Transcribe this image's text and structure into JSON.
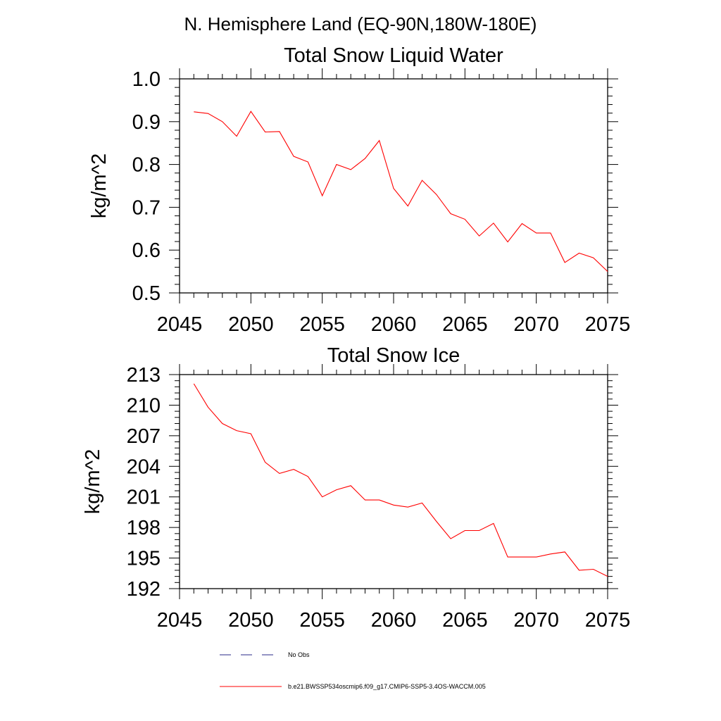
{
  "main_title": "N. Hemisphere Land (EQ-90N,180W-180E)",
  "colors": {
    "series": "#ff0000",
    "obs": "#2a2a8a",
    "axis": "#000000"
  },
  "chart_data": [
    {
      "type": "line",
      "title": "Total Snow Liquid Water",
      "xlabel": "",
      "ylabel": "kg/m^2",
      "xlim": [
        2045,
        2075
      ],
      "ylim": [
        0.5,
        1.0
      ],
      "x_ticks": [
        2045,
        2050,
        2055,
        2060,
        2065,
        2070,
        2075
      ],
      "y_ticks": [
        "0.5",
        "0.6",
        "0.7",
        "0.8",
        "0.9",
        "1.0"
      ],
      "series": [
        {
          "name": "b.e21.BWSSP534oscmip6.f09_g17.CMIP6-SSP5-3.4OS-WACCM.005",
          "x": [
            2046,
            2047,
            2048,
            2049,
            2050,
            2051,
            2052,
            2053,
            2054,
            2055,
            2056,
            2057,
            2058,
            2059,
            2060,
            2061,
            2062,
            2063,
            2064,
            2065,
            2066,
            2067,
            2068,
            2069,
            2070,
            2071,
            2072,
            2073,
            2074,
            2075
          ],
          "values": [
            0.923,
            0.919,
            0.9,
            0.866,
            0.924,
            0.876,
            0.877,
            0.819,
            0.806,
            0.727,
            0.8,
            0.788,
            0.814,
            0.856,
            0.744,
            0.703,
            0.763,
            0.73,
            0.685,
            0.672,
            0.633,
            0.663,
            0.619,
            0.662,
            0.64,
            0.64,
            0.571,
            0.593,
            0.582,
            0.55
          ]
        }
      ]
    },
    {
      "type": "line",
      "title": "Total Snow Ice",
      "xlabel": "",
      "ylabel": "kg/m^2",
      "xlim": [
        2045,
        2075
      ],
      "ylim": [
        192,
        213
      ],
      "x_ticks": [
        2045,
        2050,
        2055,
        2060,
        2065,
        2070,
        2075
      ],
      "y_ticks": [
        "192",
        "195",
        "198",
        "201",
        "204",
        "207",
        "210",
        "213"
      ],
      "series": [
        {
          "name": "b.e21.BWSSP534oscmip6.f09_g17.CMIP6-SSP5-3.4OS-WACCM.005",
          "x": [
            2046,
            2047,
            2048,
            2049,
            2050,
            2051,
            2052,
            2053,
            2054,
            2055,
            2056,
            2057,
            2058,
            2059,
            2060,
            2061,
            2062,
            2063,
            2064,
            2065,
            2066,
            2067,
            2068,
            2069,
            2070,
            2071,
            2072,
            2073,
            2074,
            2075
          ],
          "values": [
            212.1,
            209.8,
            208.2,
            207.5,
            207.2,
            204.4,
            203.3,
            203.7,
            203.0,
            201.0,
            201.7,
            202.1,
            200.7,
            200.7,
            200.2,
            200.0,
            200.4,
            198.6,
            196.9,
            197.7,
            197.7,
            198.4,
            195.1,
            195.1,
            195.1,
            195.4,
            195.6,
            193.8,
            193.9,
            193.2
          ]
        }
      ]
    }
  ],
  "legend": {
    "obs_label": "No Obs",
    "series_label": "b.e21.BWSSP534oscmip6.f09_g17.CMIP6-SSP5-3.4OS-WACCM.005"
  }
}
